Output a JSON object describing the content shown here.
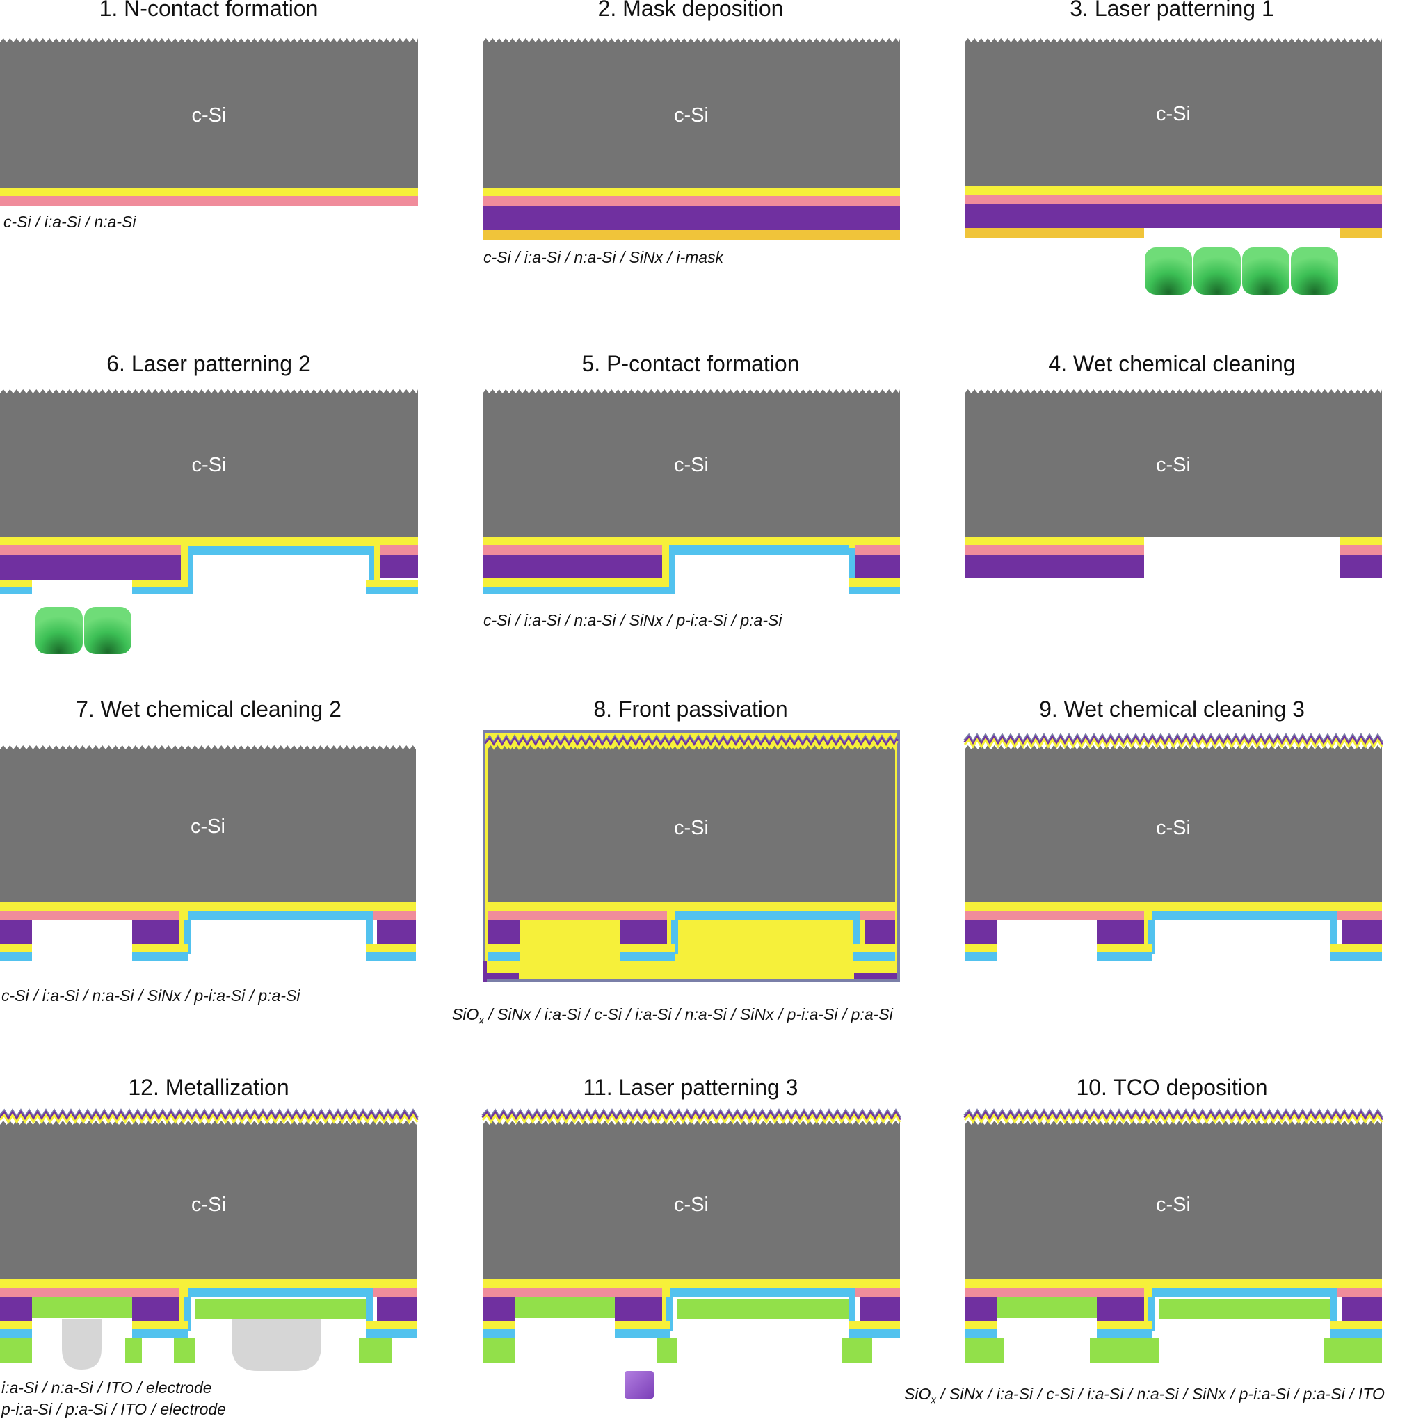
{
  "colors": {
    "silicon": "#747474",
    "i_asi": "#f6f03a",
    "n_asi": "#f08c9b",
    "sinx": "#7030a0",
    "mask": "#f0c43a",
    "p_asi": "#52c2ee",
    "ito": "#92e04a",
    "electrode": "#d6d6d6",
    "front_sio": "#7a7fa8",
    "laser": "#2fb24a"
  },
  "icons": {
    "laser_beam": "laser-beam-icon",
    "electrode": "electrode-contact-icon",
    "cut_debris": "ablated-particle-icon"
  },
  "steps": [
    {
      "title": "1. N-contact formation",
      "substrate_label": "c-Si",
      "legend": "c-Si / i:a-Si / n:a-Si"
    },
    {
      "title": "2. Mask deposition",
      "substrate_label": "c-Si",
      "legend": "c-Si / i:a-Si / n:a-Si / SiNx / i-mask"
    },
    {
      "title": "3. Laser patterning 1",
      "substrate_label": "c-Si",
      "legend": ""
    },
    {
      "title": "6. Laser patterning 2",
      "substrate_label": "c-Si",
      "legend": ""
    },
    {
      "title": "5. P-contact formation",
      "substrate_label": "c-Si",
      "legend": "c-Si / i:a-Si / n:a-Si / SiNx / p-i:a-Si / p:a-Si"
    },
    {
      "title": "4. Wet chemical cleaning",
      "substrate_label": "c-Si",
      "legend": ""
    },
    {
      "title": "7. Wet chemical cleaning 2",
      "substrate_label": "c-Si",
      "legend": "c-Si / i:a-Si / n:a-Si / SiNx / p-i:a-Si / p:a-Si"
    },
    {
      "title": "8. Front passivation",
      "substrate_label": "c-Si",
      "legend_prefix": "SiO",
      "legend_sub": "x",
      "legend_rest": " / SiNx / i:a-Si / c-Si / i:a-Si / n:a-Si / SiNx / p-i:a-Si / p:a-Si"
    },
    {
      "title": "9. Wet chemical cleaning 3",
      "substrate_label": "c-Si",
      "legend": ""
    },
    {
      "title": "12. Metallization",
      "substrate_label": "c-Si",
      "legend_line1": "i:a-Si / n:a-Si / ITO / electrode",
      "legend_line2": "p-i:a-Si / p:a-Si / ITO / electrode"
    },
    {
      "title": "11. Laser patterning 3",
      "substrate_label": "c-Si",
      "legend": ""
    },
    {
      "title": "10. TCO deposition",
      "substrate_label": "c-Si",
      "legend_prefix": "SiO",
      "legend_sub": "x",
      "legend_rest": " / SiNx / i:a-Si / c-Si / i:a-Si / n:a-Si / SiNx / p-i:a-Si / p:a-Si / ITO"
    }
  ]
}
